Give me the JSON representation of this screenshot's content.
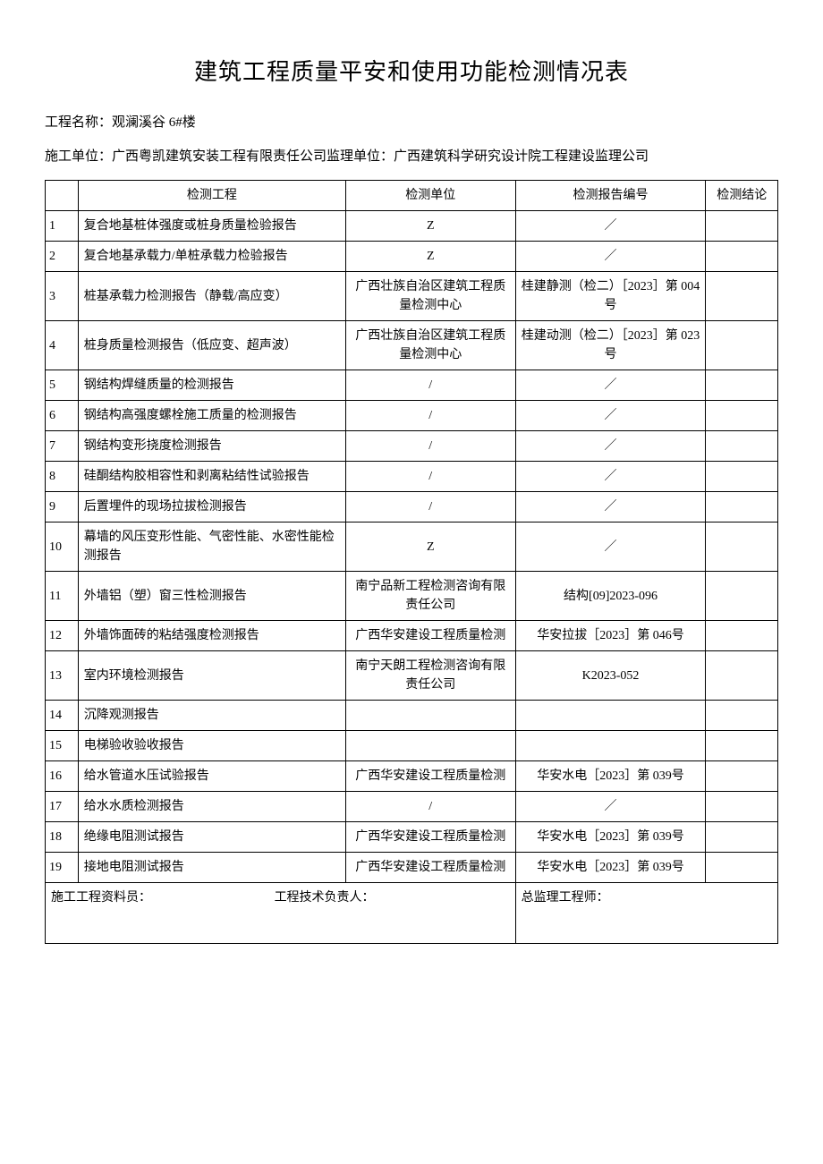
{
  "title": "建筑工程质量平安和使用功能检测情况表",
  "project_label": "工程名称：",
  "project_name": "观澜溪谷 6#楼",
  "units_line": "施工单位：广西粤凯建筑安装工程有限责任公司监理单位：广西建筑科学研究设计院工程建设监理公司",
  "headers": {
    "idx": "",
    "item": "检测工程",
    "unit": "检测单位",
    "report": "检测报告编号",
    "result": "检测结论"
  },
  "rows": [
    {
      "idx": "1",
      "item": "复合地基桩体强度或桩身质量检验报告",
      "unit": "Z",
      "report": "／",
      "result": ""
    },
    {
      "idx": "2",
      "item": "复合地基承载力/单桩承载力检验报告",
      "unit": "Z",
      "report": "／",
      "result": ""
    },
    {
      "idx": "3",
      "item": "桩基承载力检测报告（静载/高应变）",
      "unit": "广西壮族自治区建筑工程质量检测中心",
      "report": "桂建静测（检二）［2023］第 004 号",
      "result": ""
    },
    {
      "idx": "4",
      "item": "桩身质量检测报告（低应变、超声波）",
      "unit": "广西壮族自治区建筑工程质量检测中心",
      "report": "桂建动测（检二）［2023］第 023 号",
      "result": ""
    },
    {
      "idx": "5",
      "item": "钢结构焊缝质量的检测报告",
      "unit": "/",
      "report": "／",
      "result": ""
    },
    {
      "idx": "6",
      "item": "钢结构高强度螺栓施工质量的检测报告",
      "unit": "/",
      "report": "／",
      "result": ""
    },
    {
      "idx": "7",
      "item": "钢结构变形挠度检测报告",
      "unit": "/",
      "report": "／",
      "result": ""
    },
    {
      "idx": "8",
      "item": "硅酮结构胶相容性和剥离粘结性试验报告",
      "unit": "/",
      "report": "／",
      "result": ""
    },
    {
      "idx": "9",
      "item": "后置埋件的现场拉拔检测报告",
      "unit": "/",
      "report": "／",
      "result": ""
    },
    {
      "idx": "10",
      "item": "幕墙的风压变形性能、气密性能、水密性能检测报告",
      "unit": "Z",
      "report": "／",
      "result": ""
    },
    {
      "idx": "11",
      "item": "外墙铝（塑）窗三性检测报告",
      "unit": "南宁品新工程检测咨询有限责任公司",
      "report": "结构[09]2023-096",
      "result": ""
    },
    {
      "idx": "12",
      "item": "外墙饰面砖的粘结强度检测报告",
      "unit": "广西华安建设工程质量检测",
      "report": "华安拉拔［2023］第 046号",
      "result": ""
    },
    {
      "idx": "13",
      "item": "室内环境检测报告",
      "unit": "南宁天朗工程检测咨询有限责任公司",
      "report": "K2023-052",
      "result": ""
    },
    {
      "idx": "14",
      "item": "沉降观测报告",
      "unit": "",
      "report": "",
      "result": ""
    },
    {
      "idx": "15",
      "item": "电梯验收验收报告",
      "unit": "",
      "report": "",
      "result": ""
    },
    {
      "idx": "16",
      "item": "给水管道水压试验报告",
      "unit": "广西华安建设工程质量检测",
      "report": "华安水电［2023］第 039号",
      "result": ""
    },
    {
      "idx": "17",
      "item": "给水水质检测报告",
      "unit": "/",
      "report": "／",
      "result": ""
    },
    {
      "idx": "18",
      "item": "绝缘电阻测试报告",
      "unit": "广西华安建设工程质量检测",
      "report": "华安水电［2023］第 039号",
      "result": ""
    },
    {
      "idx": "19",
      "item": "接地电阻测试报告",
      "unit": "广西华安建设工程质量检测",
      "report": "华安水电［2023］第 039号",
      "result": ""
    }
  ],
  "footer": {
    "left": "施工工程资料员：",
    "mid": "工程技术负责人：",
    "right": "总监理工程师："
  }
}
